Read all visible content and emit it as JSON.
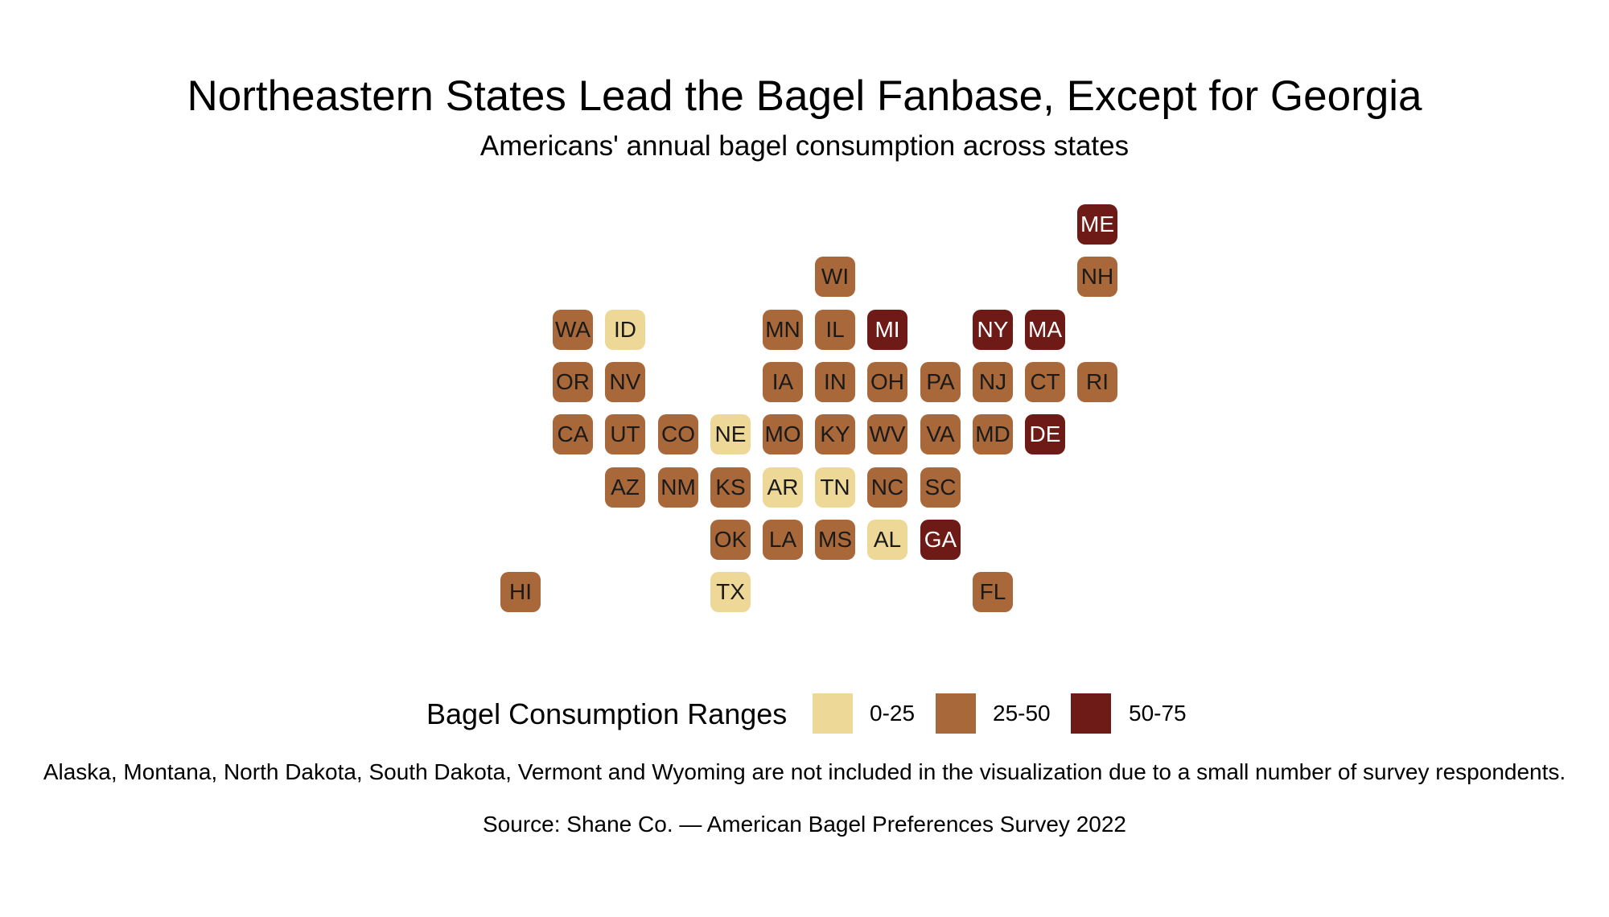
{
  "title": "Northeastern States Lead the Bagel Fanbase, Except for Georgia",
  "subtitle": "Americans' annual bagel consumption across states",
  "note": "Alaska, Montana, North Dakota, South Dakota, Vermont and Wyoming are not included in the visualization due to a small number of survey respondents.",
  "source": "Source: Shane Co. — American Bagel Preferences Survey 2022",
  "colors": {
    "low": "#EDD898",
    "mid": "#A9683A",
    "high": "#6E1A16",
    "text_dark": "#1a1a1a",
    "text_light": "#ffffff"
  },
  "legend": {
    "title": "Bagel Consumption Ranges",
    "items": [
      {
        "range": "low",
        "label": "0-25"
      },
      {
        "range": "mid",
        "label": "25-50"
      },
      {
        "range": "high",
        "label": "50-75"
      }
    ]
  },
  "tiles": [
    {
      "abbr": "ME",
      "row": 0,
      "col": 11,
      "range": "high"
    },
    {
      "abbr": "WI",
      "row": 1,
      "col": 6,
      "range": "mid"
    },
    {
      "abbr": "NH",
      "row": 1,
      "col": 11,
      "range": "mid"
    },
    {
      "abbr": "WA",
      "row": 2,
      "col": 1,
      "range": "mid"
    },
    {
      "abbr": "ID",
      "row": 2,
      "col": 2,
      "range": "low"
    },
    {
      "abbr": "MN",
      "row": 2,
      "col": 5,
      "range": "mid"
    },
    {
      "abbr": "IL",
      "row": 2,
      "col": 6,
      "range": "mid"
    },
    {
      "abbr": "MI",
      "row": 2,
      "col": 7,
      "range": "high"
    },
    {
      "abbr": "NY",
      "row": 2,
      "col": 9,
      "range": "high"
    },
    {
      "abbr": "MA",
      "row": 2,
      "col": 10,
      "range": "high"
    },
    {
      "abbr": "OR",
      "row": 3,
      "col": 1,
      "range": "mid"
    },
    {
      "abbr": "NV",
      "row": 3,
      "col": 2,
      "range": "mid"
    },
    {
      "abbr": "IA",
      "row": 3,
      "col": 5,
      "range": "mid"
    },
    {
      "abbr": "IN",
      "row": 3,
      "col": 6,
      "range": "mid"
    },
    {
      "abbr": "OH",
      "row": 3,
      "col": 7,
      "range": "mid"
    },
    {
      "abbr": "PA",
      "row": 3,
      "col": 8,
      "range": "mid"
    },
    {
      "abbr": "NJ",
      "row": 3,
      "col": 9,
      "range": "mid"
    },
    {
      "abbr": "CT",
      "row": 3,
      "col": 10,
      "range": "mid"
    },
    {
      "abbr": "RI",
      "row": 3,
      "col": 11,
      "range": "mid"
    },
    {
      "abbr": "CA",
      "row": 4,
      "col": 1,
      "range": "mid"
    },
    {
      "abbr": "UT",
      "row": 4,
      "col": 2,
      "range": "mid"
    },
    {
      "abbr": "CO",
      "row": 4,
      "col": 3,
      "range": "mid"
    },
    {
      "abbr": "NE",
      "row": 4,
      "col": 4,
      "range": "low"
    },
    {
      "abbr": "MO",
      "row": 4,
      "col": 5,
      "range": "mid"
    },
    {
      "abbr": "KY",
      "row": 4,
      "col": 6,
      "range": "mid"
    },
    {
      "abbr": "WV",
      "row": 4,
      "col": 7,
      "range": "mid"
    },
    {
      "abbr": "VA",
      "row": 4,
      "col": 8,
      "range": "mid"
    },
    {
      "abbr": "MD",
      "row": 4,
      "col": 9,
      "range": "mid"
    },
    {
      "abbr": "DE",
      "row": 4,
      "col": 10,
      "range": "high"
    },
    {
      "abbr": "AZ",
      "row": 5,
      "col": 2,
      "range": "mid"
    },
    {
      "abbr": "NM",
      "row": 5,
      "col": 3,
      "range": "mid"
    },
    {
      "abbr": "KS",
      "row": 5,
      "col": 4,
      "range": "mid"
    },
    {
      "abbr": "AR",
      "row": 5,
      "col": 5,
      "range": "low"
    },
    {
      "abbr": "TN",
      "row": 5,
      "col": 6,
      "range": "low"
    },
    {
      "abbr": "NC",
      "row": 5,
      "col": 7,
      "range": "mid"
    },
    {
      "abbr": "SC",
      "row": 5,
      "col": 8,
      "range": "mid"
    },
    {
      "abbr": "OK",
      "row": 6,
      "col": 4,
      "range": "mid"
    },
    {
      "abbr": "LA",
      "row": 6,
      "col": 5,
      "range": "mid"
    },
    {
      "abbr": "MS",
      "row": 6,
      "col": 6,
      "range": "mid"
    },
    {
      "abbr": "AL",
      "row": 6,
      "col": 7,
      "range": "low"
    },
    {
      "abbr": "GA",
      "row": 6,
      "col": 8,
      "range": "high"
    },
    {
      "abbr": "HI",
      "row": 7,
      "col": 0,
      "range": "mid"
    },
    {
      "abbr": "TX",
      "row": 7,
      "col": 4,
      "range": "low"
    },
    {
      "abbr": "FL",
      "row": 7,
      "col": 9,
      "range": "mid"
    }
  ]
}
